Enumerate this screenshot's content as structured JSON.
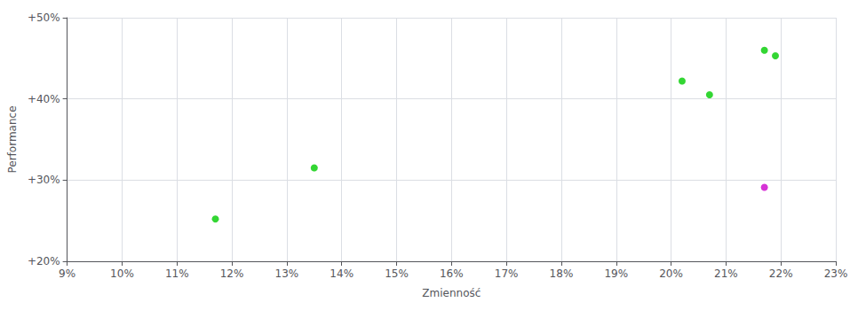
{
  "chart_data": {
    "type": "scatter",
    "xlabel": "Zmienność",
    "ylabel": "Performance",
    "xlim": [
      0.09,
      0.23
    ],
    "ylim": [
      0.2,
      0.5
    ],
    "xticks": [
      {
        "value": 0.09,
        "label": "9%"
      },
      {
        "value": 0.1,
        "label": "10%"
      },
      {
        "value": 0.11,
        "label": "11%"
      },
      {
        "value": 0.12,
        "label": "12%"
      },
      {
        "value": 0.13,
        "label": "13%"
      },
      {
        "value": 0.14,
        "label": "14%"
      },
      {
        "value": 0.15,
        "label": "15%"
      },
      {
        "value": 0.16,
        "label": "16%"
      },
      {
        "value": 0.17,
        "label": "17%"
      },
      {
        "value": 0.18,
        "label": "18%"
      },
      {
        "value": 0.19,
        "label": "19%"
      },
      {
        "value": 0.2,
        "label": "20%"
      },
      {
        "value": 0.21,
        "label": "21%"
      },
      {
        "value": 0.22,
        "label": "22%"
      },
      {
        "value": 0.23,
        "label": "23%"
      }
    ],
    "yticks": [
      {
        "value": 0.2,
        "label": "+20%"
      },
      {
        "value": 0.3,
        "label": "+30%"
      },
      {
        "value": 0.4,
        "label": "+40%"
      },
      {
        "value": 0.5,
        "label": "+50%"
      }
    ],
    "grid": true,
    "series": [
      {
        "color": "#00cc00",
        "x": [
          0.117,
          0.135,
          0.202,
          0.207,
          0.217,
          0.219
        ],
        "values": [
          0.252,
          0.315,
          0.422,
          0.405,
          0.46,
          0.453
        ]
      },
      {
        "color": "#cc00cc",
        "x": [
          0.217
        ],
        "values": [
          0.291
        ]
      }
    ]
  }
}
